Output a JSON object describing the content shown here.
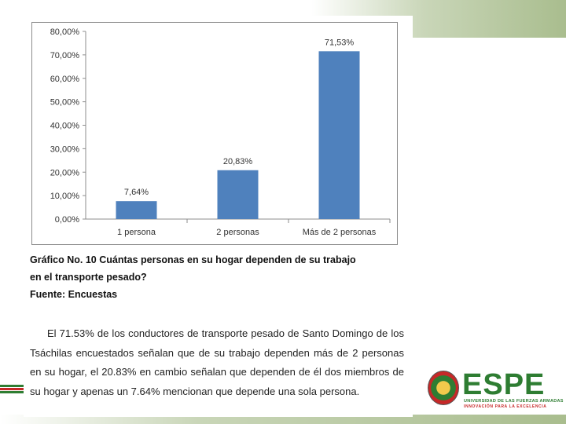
{
  "chart_data": {
    "type": "bar",
    "categories": [
      "1 persona",
      "2 personas",
      "Más de 2 personas"
    ],
    "values": [
      7.64,
      20.83,
      71.53
    ],
    "data_labels": [
      "7,64%",
      "20,83%",
      "71,53%"
    ],
    "yticks": [
      "0,00%",
      "10,00%",
      "20,00%",
      "30,00%",
      "40,00%",
      "50,00%",
      "60,00%",
      "70,00%",
      "80,00%"
    ],
    "ylim": [
      0,
      80
    ],
    "grid": false,
    "bar_color": "#4f81bd"
  },
  "caption": {
    "line1": "Gráfico No. 10 Cuántas personas en su hogar dependen de su trabajo",
    "line2": "en el transporte pesado?",
    "line3": "Fuente: Encuestas"
  },
  "paragraph": "El 71.53% de los conductores de transporte pesado de Santo Domingo de los Tsáchilas encuestados señalan que de su trabajo dependen más de 2 personas en su hogar, el 20.83% en cambio señalan que dependen de él dos miembros de su hogar y apenas un 7.64% mencionan que depende una sola persona.",
  "logo": {
    "word": "ESPE",
    "subtitle": "UNIVERSIDAD DE LAS FUERZAS ARMADAS",
    "tagline": "INNOVACIÓN PARA LA EXCELENCIA"
  }
}
